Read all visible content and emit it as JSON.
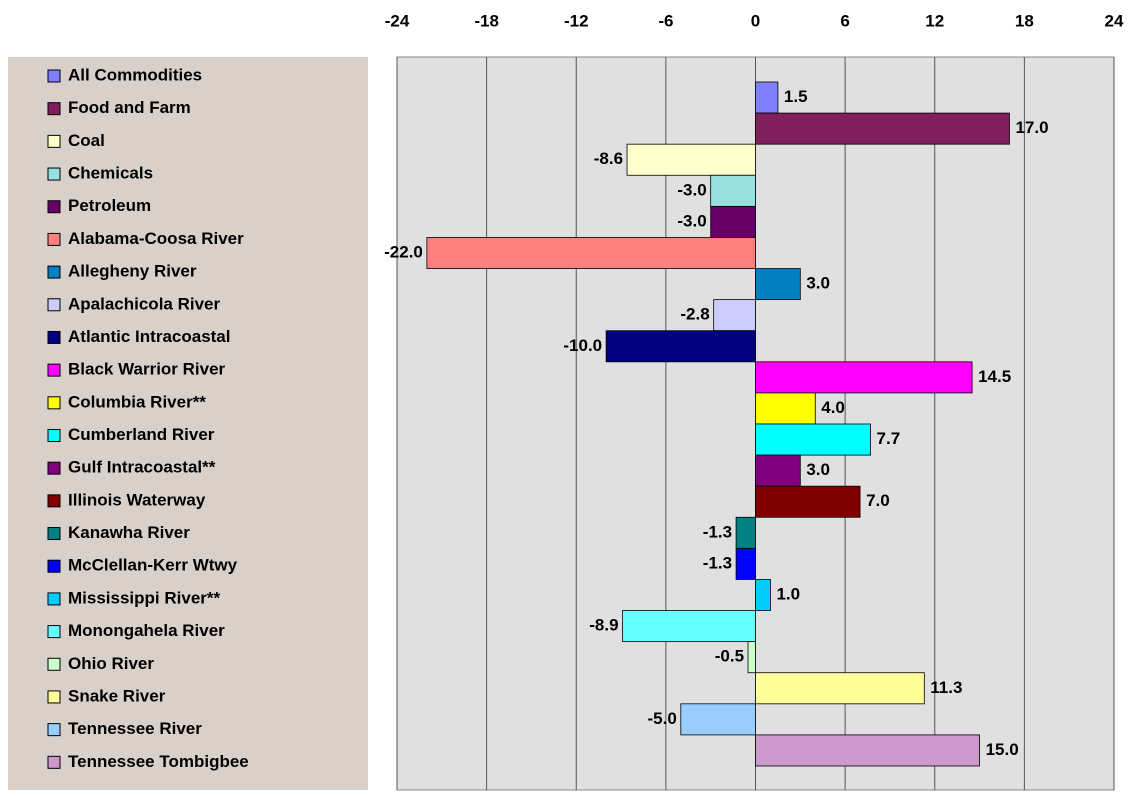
{
  "chart_data": {
    "type": "hbar",
    "categories": [
      "All Commodities",
      "Food and Farm",
      "Coal",
      "Chemicals",
      "Petroleum",
      "Alabama-Coosa River",
      "Allegheny River",
      "Apalachicola River",
      "Atlantic Intracoastal",
      "Black Warrior River",
      "Columbia River**",
      "Cumberland River",
      "Gulf Intracoastal**",
      "Illinois Waterway",
      "Kanawha River",
      "McClellan-Kerr Wtwy",
      "Mississippi River**",
      "Monongahela River",
      "Ohio River",
      "Snake River",
      "Tennessee River",
      "Tennessee Tombigbee"
    ],
    "values": [
      1.5,
      17,
      -8.6,
      -3,
      -3,
      -22,
      3,
      -2.8,
      -10,
      14.5,
      4,
      7.7,
      3,
      7,
      -1.3,
      -1.3,
      1,
      -8.9,
      -0.5,
      11.3,
      -5,
      15
    ],
    "value_labels": [
      "1.5",
      "17.0",
      "-8.6",
      "-3.0",
      "-3.0",
      "-22.0",
      "3.0",
      "-2.8",
      "-10.0",
      "14.5",
      "4.0",
      "7.7",
      "3.0",
      "7.0",
      "-1.3",
      "-1.3",
      "1.0",
      "-8.9",
      "-0.5",
      "11.3",
      "-5.0",
      "15.0"
    ],
    "colors": [
      "#8080ff",
      "#801f5c",
      "#ffffcc",
      "#99e0e0",
      "#660066",
      "#ff8080",
      "#0080c0",
      "#ccccff",
      "#000080",
      "#ff00ff",
      "#ffff00",
      "#00ffff",
      "#800080",
      "#800000",
      "#008080",
      "#0000ff",
      "#00ccff",
      "#66ffff",
      "#ccffcc",
      "#ffff99",
      "#99ccff",
      "#cc99cc"
    ],
    "xlim": [
      -24,
      24
    ],
    "xticks": [
      -24,
      -18,
      -12,
      -6,
      0,
      6,
      12,
      18,
      24
    ],
    "grid": true,
    "legend": "left"
  }
}
